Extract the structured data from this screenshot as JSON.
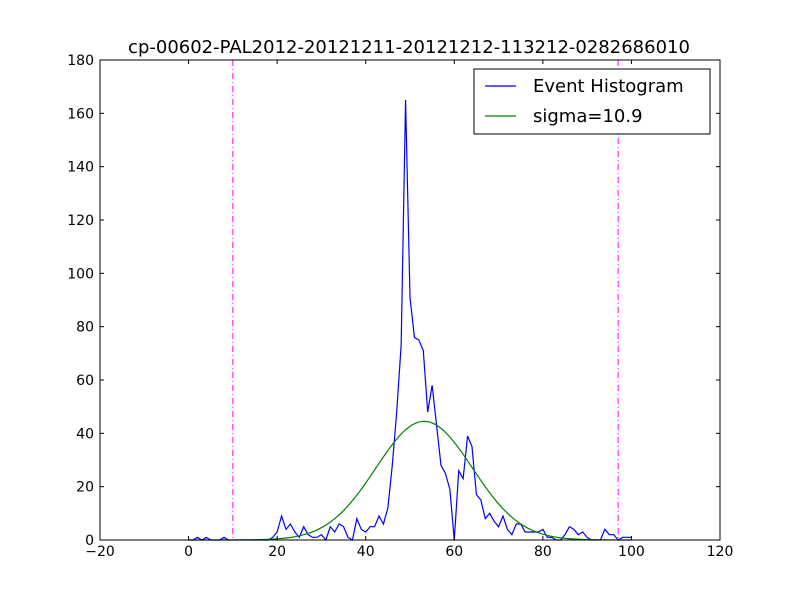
{
  "chart_data": {
    "type": "line",
    "title": "cp-00602-PAL2012-20121211-20121212-113212-0282686010",
    "xlabel": "",
    "ylabel": "",
    "xlim": [
      -20,
      120
    ],
    "ylim": [
      0,
      180
    ],
    "xticks": [
      -20,
      0,
      20,
      40,
      60,
      80,
      100,
      120
    ],
    "yticks": [
      0,
      20,
      40,
      60,
      80,
      100,
      120,
      140,
      160,
      180
    ],
    "grid": false,
    "legend_position": "top-right",
    "series": [
      {
        "name": "Event Histogram",
        "color": "#0000ff",
        "x": [
          0,
          1,
          2,
          3,
          4,
          5,
          6,
          7,
          8,
          9,
          10,
          11,
          12,
          13,
          14,
          15,
          16,
          17,
          18,
          19,
          20,
          21,
          22,
          23,
          24,
          25,
          26,
          27,
          28,
          29,
          30,
          31,
          32,
          33,
          34,
          35,
          36,
          37,
          38,
          39,
          40,
          41,
          42,
          43,
          44,
          45,
          46,
          47,
          48,
          49,
          50,
          51,
          52,
          53,
          54,
          55,
          56,
          57,
          58,
          59,
          60,
          61,
          62,
          63,
          64,
          65,
          66,
          67,
          68,
          69,
          70,
          71,
          72,
          73,
          74,
          75,
          76,
          77,
          78,
          79,
          80,
          81,
          82,
          83,
          84,
          85,
          86,
          87,
          88,
          89,
          90,
          91,
          92,
          93,
          94,
          95,
          96,
          97,
          98,
          99,
          100
        ],
        "y": [
          0,
          0,
          1,
          0,
          1,
          0,
          0,
          0,
          1,
          0,
          0,
          0,
          0,
          0,
          0,
          0,
          0,
          0,
          0,
          1,
          3,
          9,
          4,
          6,
          3,
          1,
          5,
          2,
          1,
          1,
          2,
          0,
          5,
          3,
          6,
          5,
          1,
          0,
          8,
          4,
          3,
          5,
          5,
          9,
          6,
          12,
          28,
          48,
          73,
          165,
          91,
          76,
          75,
          71,
          48,
          58,
          43,
          28,
          25,
          19,
          0,
          26,
          23,
          39,
          35,
          17,
          15,
          8,
          10,
          7,
          5,
          9,
          4,
          2,
          6,
          6,
          3,
          3,
          3,
          3,
          4,
          1,
          1,
          0,
          0,
          2,
          5,
          4,
          2,
          3,
          1,
          0,
          0,
          0,
          4,
          2,
          2,
          0,
          1,
          1,
          1
        ]
      },
      {
        "name": "sigma=10.9",
        "color": "#008000",
        "amplitude": 44.5,
        "mean": 53.2,
        "sigma": 10.9,
        "x_range": [
          0,
          100
        ]
      }
    ],
    "vlines": [
      {
        "x": 10,
        "color": "#ff00ff",
        "style": "dashdot"
      },
      {
        "x": 97,
        "color": "#ff00ff",
        "style": "dashdot"
      }
    ]
  }
}
